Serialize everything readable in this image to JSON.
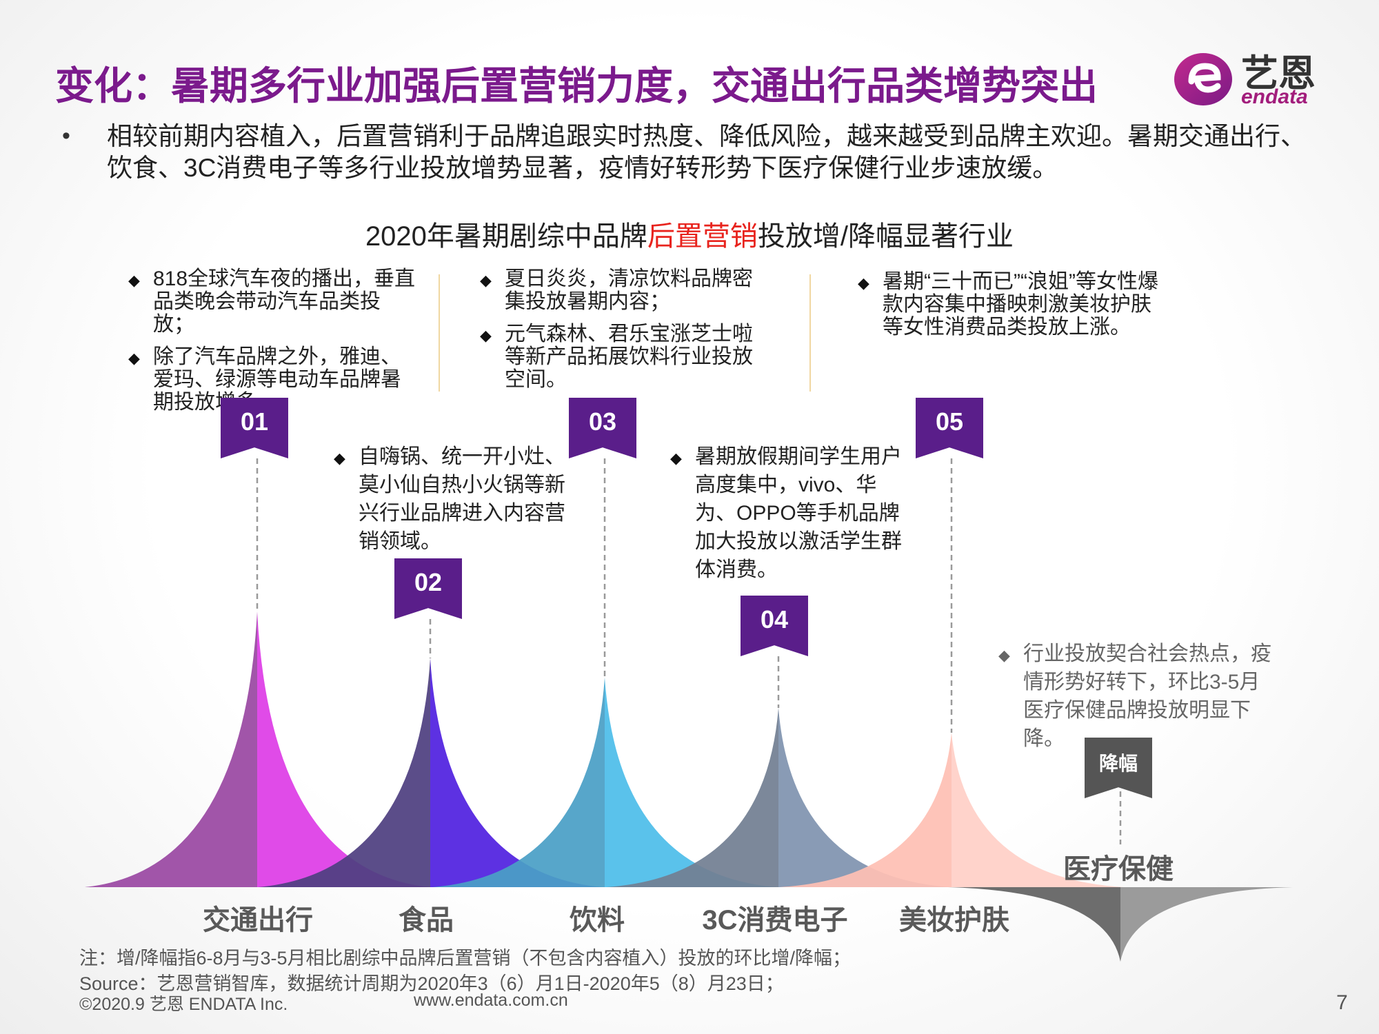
{
  "title": "变化：暑期多行业加强后置营销力度，交通出行品类增势突出",
  "logo": {
    "cn": "艺恩",
    "en": "endata"
  },
  "intro": {
    "bullet": "•",
    "text": "相较前期内容植入，后置营销利于品牌追跟实时热度、降低风险，越来越受到品牌主欢迎。暑期交通出行、饮食、3C消费电子等多行业投放增势显著，疫情好转形势下医疗保健行业步速放缓。"
  },
  "chart_title": {
    "pre": "2020年暑期剧综中品牌",
    "highlight": "后置营销",
    "post": "投放增/降幅显著行业"
  },
  "notes": {
    "n01": [
      "818全球汽车夜的播出，垂直品类晚会带动汽车品类投放；",
      "除了汽车品牌之外，雅迪、爱玛、绿源等电动车品牌暑期投放增多。"
    ],
    "n02": [
      "自嗨锅、统一开小灶、莫小仙自热小火锅等新兴行业品牌进入内容营销领域。"
    ],
    "n03": [
      "夏日炎炎，清凉饮料品牌密集投放暑期内容；",
      "元气森林、君乐宝涨芝士啦等新产品拓展饮料行业投放空间。"
    ],
    "n04": [
      "暑期放假期间学生用户高度集中，vivo、华为、OPPO等手机品牌加大投放以激活学生群体消费。"
    ],
    "n05": [
      "暑期“三十而已”“浪姐”等女性爆款内容集中播映刺激美妆护肤等女性消费品类投放上涨。"
    ],
    "down": [
      "行业投放契合社会热点，疫情形势好转下，环比3-5月医疗保健品牌投放明显下降。"
    ]
  },
  "markers": [
    "01",
    "02",
    "03",
    "04",
    "05",
    "降幅"
  ],
  "chart_data": {
    "type": "area",
    "categories": [
      "交通出行",
      "食品",
      "饮料",
      "3C消费电子",
      "美妆护肤",
      "医疗保健"
    ],
    "direction": [
      "增",
      "增",
      "增",
      "增",
      "增",
      "降"
    ],
    "relative_magnitude": [
      1.0,
      0.83,
      0.76,
      0.65,
      0.56,
      -0.27
    ],
    "colors": [
      [
        "#9a48a3",
        "#de3de6"
      ],
      [
        "#4f3f80",
        "#5121e0"
      ],
      [
        "#4a9fc6",
        "#4ebdea"
      ],
      [
        "#727f92",
        "#8093af"
      ],
      [
        "#fec0b4",
        "#ffd0c7"
      ],
      [
        "#6d6d6d",
        "#9b9b9b"
      ]
    ]
  },
  "footer": {
    "note": "注：增/降幅指6-8月与3-5月相比剧综中品牌后置营销（不包含内容植入）投放的环比增/降幅；",
    "source": "Source：艺恩营销智库，数据统计周期为2020年3（6）月1日-2020年5（8）月23日；",
    "copyright": "©2020.9 艺恩 ENDATA Inc.",
    "url": "www.endata.com.cn",
    "page": "7"
  }
}
